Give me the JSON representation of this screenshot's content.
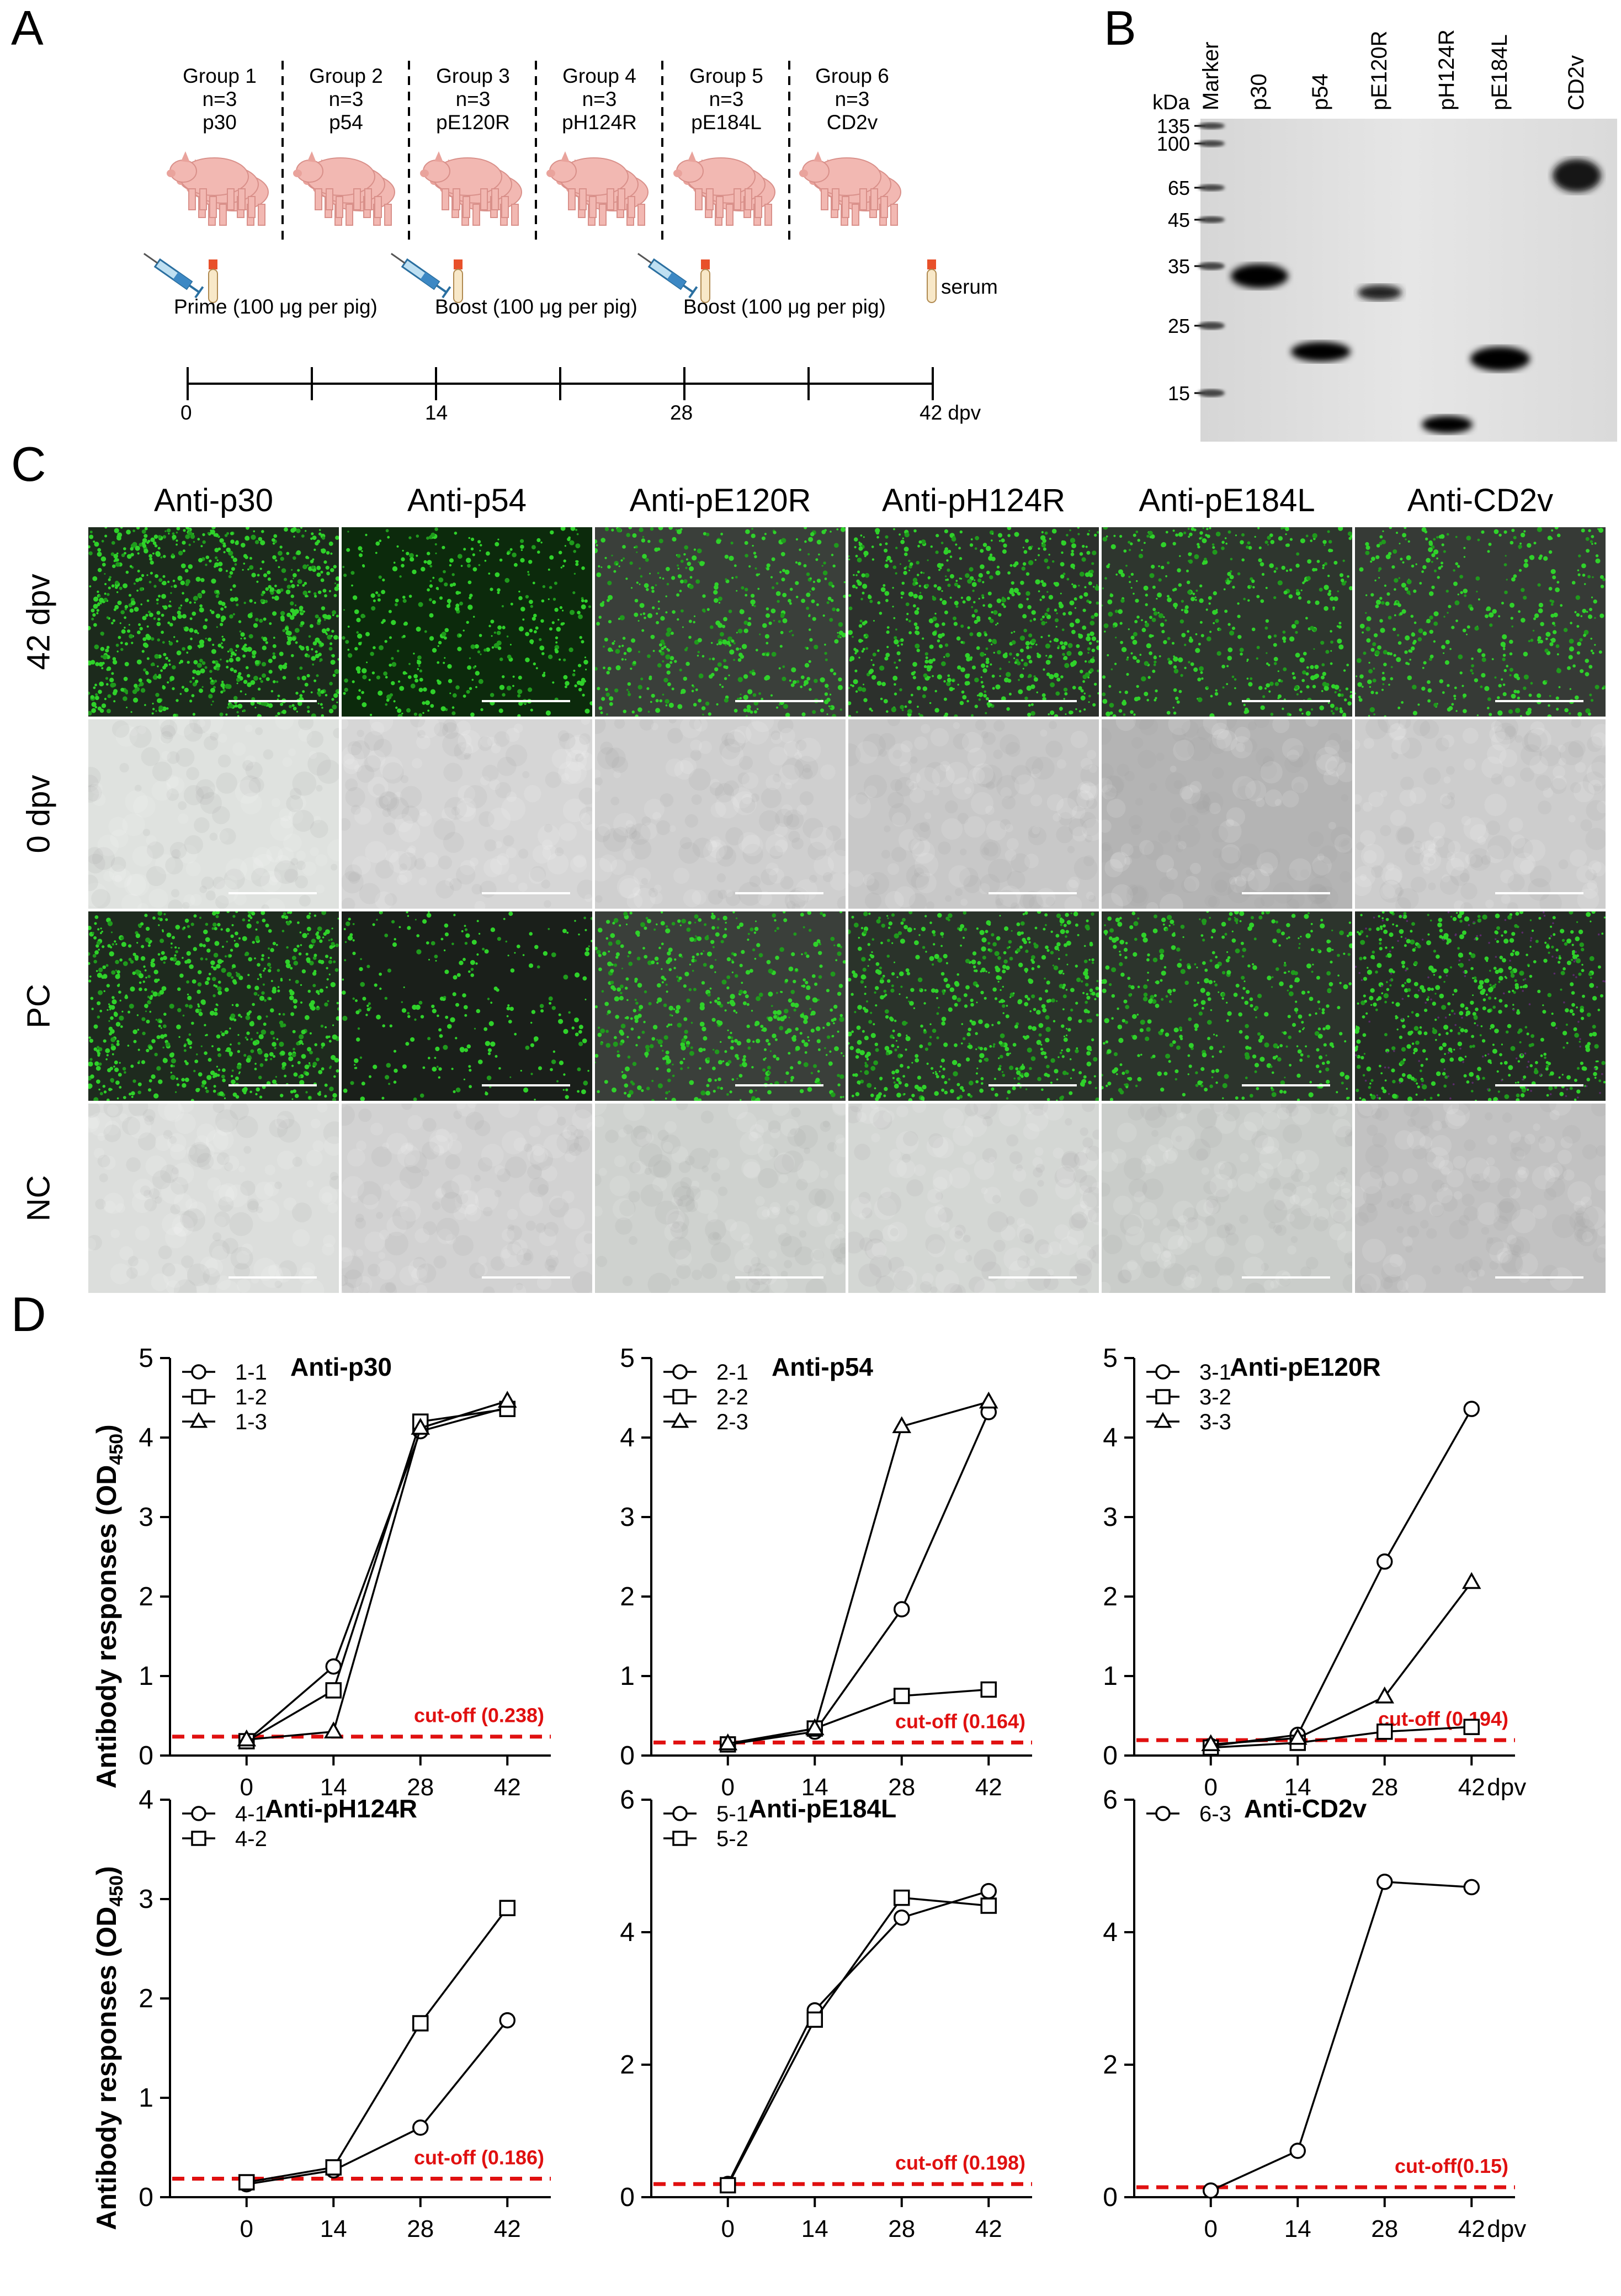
{
  "panels": {
    "a": "A",
    "b": "B",
    "c": "C",
    "d": "D"
  },
  "panel_a": {
    "groups": [
      {
        "title": "Group 1",
        "n": "n=3",
        "antigen": "p30"
      },
      {
        "title": "Group 2",
        "n": "n=3",
        "antigen": "p54"
      },
      {
        "title": "Group 3",
        "n": "n=3",
        "antigen": "pE120R"
      },
      {
        "title": "Group 4",
        "n": "n=3",
        "antigen": "pH124R"
      },
      {
        "title": "Group 5",
        "n": "n=3",
        "antigen": "pE184L"
      },
      {
        "title": "Group 6",
        "n": "n=3",
        "antigen": "CD2v"
      }
    ],
    "serum_label": "serum",
    "prime_label": "Prime (100 μg per pig)",
    "boost1_label": "Boost (100 μg per pig)",
    "boost2_label": "Boost (100 μg per pig)",
    "timeline_ticks": [
      "0",
      "14",
      "28",
      "42 dpv"
    ]
  },
  "panel_b": {
    "unit": "kDa",
    "lanes": [
      "Marker",
      "p30",
      "p54",
      "pE120R",
      "pH124R",
      "pE184L",
      "CD2v"
    ],
    "markers": [
      "135",
      "100",
      "65",
      "45",
      "35",
      "25",
      "15"
    ]
  },
  "panel_c": {
    "columns": [
      "Anti-p30",
      "Anti-p54",
      "Anti-pE120R",
      "Anti-pH124R",
      "Anti-pE184L",
      "Anti-CD2v"
    ],
    "rows": [
      "42 dpv",
      "0 dpv",
      "PC",
      "NC"
    ]
  },
  "panel_d": {
    "ylabel_main": "Antibody responses (OD",
    "ylabel_sub": "450",
    "ylabel_close": ")",
    "colors": {
      "line": "#000000",
      "cutoff": "#e01010"
    }
  },
  "chart_data": [
    {
      "type": "line",
      "title": "Anti-p30",
      "x": [
        0,
        14,
        28,
        42
      ],
      "xticks": [
        "0",
        "14",
        "28",
        "42"
      ],
      "xunit": "",
      "ylim": [
        0,
        5
      ],
      "yticks": [
        0,
        1,
        2,
        3,
        4,
        5
      ],
      "series": [
        {
          "name": "1-1",
          "marker": "circle",
          "values": [
            0.18,
            1.12,
            4.08,
            4.38
          ]
        },
        {
          "name": "1-2",
          "marker": "square",
          "values": [
            0.18,
            0.82,
            4.2,
            4.36
          ]
        },
        {
          "name": "1-3",
          "marker": "triangle",
          "values": [
            0.2,
            0.3,
            4.12,
            4.46
          ]
        }
      ],
      "cutoff": 0.238,
      "cutoff_label": "cut-off (0.238)"
    },
    {
      "type": "line",
      "title": "Anti-p54",
      "x": [
        0,
        14,
        28,
        42
      ],
      "xticks": [
        "0",
        "14",
        "28",
        "42"
      ],
      "xunit": "",
      "ylim": [
        0,
        5
      ],
      "yticks": [
        0,
        1,
        2,
        3,
        4,
        5
      ],
      "series": [
        {
          "name": "2-1",
          "marker": "circle",
          "values": [
            0.14,
            0.3,
            1.84,
            4.32
          ]
        },
        {
          "name": "2-2",
          "marker": "square",
          "values": [
            0.14,
            0.34,
            0.75,
            0.83
          ]
        },
        {
          "name": "2-3",
          "marker": "triangle",
          "values": [
            0.15,
            0.34,
            4.14,
            4.45
          ]
        }
      ],
      "cutoff": 0.164,
      "cutoff_label": "cut-off (0.164)"
    },
    {
      "type": "line",
      "title": "Anti-pE120R",
      "x": [
        0,
        14,
        28,
        42
      ],
      "xticks": [
        "0",
        "14",
        "28",
        "42"
      ],
      "xunit": "dpv",
      "ylim": [
        0,
        5
      ],
      "yticks": [
        0,
        1,
        2,
        3,
        4,
        5
      ],
      "series": [
        {
          "name": "3-1",
          "marker": "circle",
          "values": [
            0.12,
            0.26,
            2.44,
            4.36
          ]
        },
        {
          "name": "3-2",
          "marker": "square",
          "values": [
            0.1,
            0.16,
            0.3,
            0.36
          ]
        },
        {
          "name": "3-3",
          "marker": "triangle",
          "values": [
            0.14,
            0.22,
            0.74,
            2.18
          ]
        }
      ],
      "cutoff": 0.194,
      "cutoff_label": "cut-off (0.194)"
    },
    {
      "type": "line",
      "title": "Anti-pH124R",
      "x": [
        0,
        14,
        28,
        42
      ],
      "xticks": [
        "0",
        "14",
        "28",
        "42"
      ],
      "xunit": "",
      "ylim": [
        0,
        4
      ],
      "yticks": [
        0,
        1,
        2,
        3,
        4
      ],
      "series": [
        {
          "name": "4-1",
          "marker": "circle",
          "values": [
            0.13,
            0.27,
            0.7,
            1.78
          ]
        },
        {
          "name": "4-2",
          "marker": "square",
          "values": [
            0.15,
            0.3,
            1.75,
            2.91
          ]
        }
      ],
      "cutoff": 0.186,
      "cutoff_label": "cut-off (0.186)"
    },
    {
      "type": "line",
      "title": "Anti-pE184L",
      "x": [
        0,
        14,
        28,
        42
      ],
      "xticks": [
        "0",
        "14",
        "28",
        "42"
      ],
      "xunit": "",
      "ylim": [
        0,
        6
      ],
      "yticks": [
        0,
        2,
        4,
        6
      ],
      "series": [
        {
          "name": "5-1",
          "marker": "circle",
          "values": [
            0.2,
            2.82,
            4.22,
            4.62
          ]
        },
        {
          "name": "5-2",
          "marker": "square",
          "values": [
            0.18,
            2.68,
            4.52,
            4.4
          ]
        }
      ],
      "cutoff": 0.198,
      "cutoff_label": "cut-off (0.198)"
    },
    {
      "type": "line",
      "title": "Anti-CD2v",
      "x": [
        0,
        14,
        28,
        42
      ],
      "xticks": [
        "0",
        "14",
        "28",
        "42"
      ],
      "xunit": "dpv",
      "ylim": [
        0,
        6
      ],
      "yticks": [
        0,
        2,
        4,
        6
      ],
      "series": [
        {
          "name": "6-3",
          "marker": "circle",
          "values": [
            0.1,
            0.7,
            4.76,
            4.68
          ]
        }
      ],
      "cutoff": 0.15,
      "cutoff_label": "cut-off(0.15)"
    }
  ]
}
